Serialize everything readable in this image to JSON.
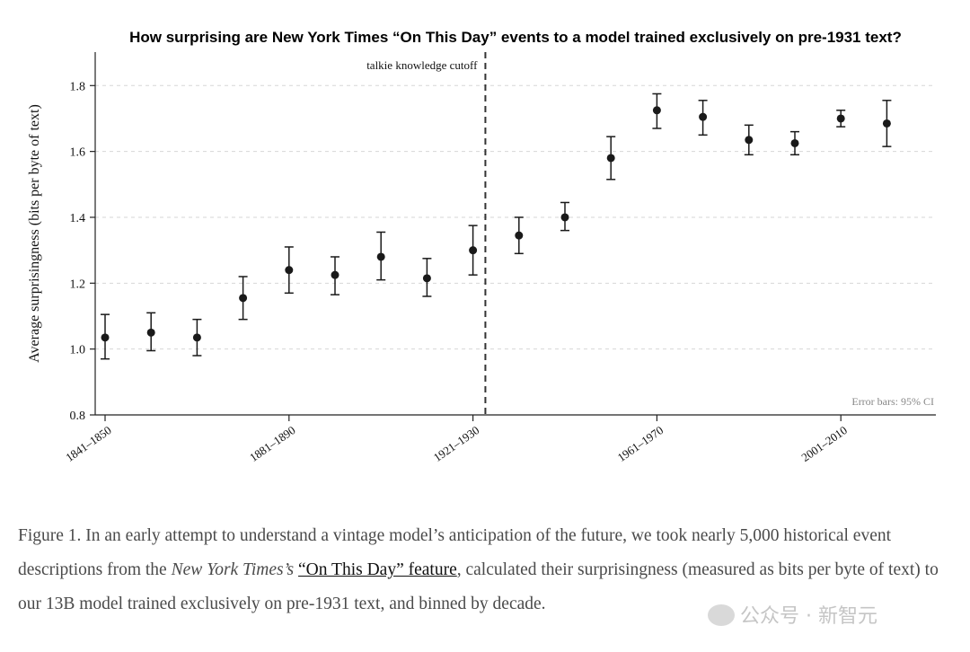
{
  "chart_data": {
    "type": "scatter",
    "title": "How surprising are New York Times “On This Day” events to a model trained exclusively on pre-1931 text?",
    "ylabel": "Average surprisingness (bits per byte of text)",
    "xlabel": "",
    "ylim": [
      0.8,
      1.9
    ],
    "y_ticks": [
      0.8,
      1.0,
      1.2,
      1.4,
      1.6,
      1.8
    ],
    "y_tick_labels": [
      "0.8",
      "1.0",
      "1.2",
      "1.4",
      "1.6",
      "1.8"
    ],
    "grid": "horizontal dashed",
    "x_tick_labels": [
      {
        "index": 0,
        "label": "1841–1850"
      },
      {
        "index": 4,
        "label": "1881–1890"
      },
      {
        "index": 8,
        "label": "1921–1930"
      },
      {
        "index": 12,
        "label": "1961–1970"
      },
      {
        "index": 16,
        "label": "2001–2010"
      }
    ],
    "series": [
      {
        "points": [
          {
            "x": "1841–1850",
            "y": 1.035,
            "low": 0.97,
            "high": 1.105
          },
          {
            "x": "1851–1860",
            "y": 1.05,
            "low": 0.995,
            "high": 1.11
          },
          {
            "x": "1861–1870",
            "y": 1.035,
            "low": 0.98,
            "high": 1.09
          },
          {
            "x": "1871–1880",
            "y": 1.155,
            "low": 1.09,
            "high": 1.22
          },
          {
            "x": "1881–1890",
            "y": 1.24,
            "low": 1.17,
            "high": 1.31
          },
          {
            "x": "1891–1900",
            "y": 1.225,
            "low": 1.165,
            "high": 1.28
          },
          {
            "x": "1901–1910",
            "y": 1.28,
            "low": 1.21,
            "high": 1.355
          },
          {
            "x": "1911–1920",
            "y": 1.215,
            "low": 1.16,
            "high": 1.275
          },
          {
            "x": "1921–1930",
            "y": 1.3,
            "low": 1.225,
            "high": 1.375
          },
          {
            "x": "1931–1940",
            "y": 1.345,
            "low": 1.29,
            "high": 1.4
          },
          {
            "x": "1941–1950",
            "y": 1.4,
            "low": 1.36,
            "high": 1.445
          },
          {
            "x": "1951–1960",
            "y": 1.58,
            "low": 1.515,
            "high": 1.645
          },
          {
            "x": "1961–1970",
            "y": 1.725,
            "low": 1.67,
            "high": 1.775
          },
          {
            "x": "1971–1980",
            "y": 1.705,
            "low": 1.65,
            "high": 1.755
          },
          {
            "x": "1981–1990",
            "y": 1.635,
            "low": 1.59,
            "high": 1.68
          },
          {
            "x": "1991–2000",
            "y": 1.625,
            "low": 1.59,
            "high": 1.66
          },
          {
            "x": "2001–2010",
            "y": 1.7,
            "low": 1.675,
            "high": 1.725
          },
          {
            "x": "2011–2020",
            "y": 1.685,
            "low": 1.615,
            "high": 1.755
          }
        ]
      }
    ],
    "cutoff": {
      "after_index": 8,
      "label": "talkie knowledge cutoff"
    },
    "note": "Error bars: 95% CI",
    "colors": {
      "points": "#1a1a1a",
      "grid": "#d6d6d6",
      "axis": "#222222"
    }
  },
  "caption": {
    "prefix": "Figure 1. In an early attempt to understand a vintage model’s anticipation of the future, we took nearly 5,000 historical event descriptions from the ",
    "italic": "New York Times’s",
    "space": " ",
    "link": "“On This Day” feature",
    "suffix": ", calculated their surprisingness (measured as bits per byte of text) to our 13B model trained exclusively on pre-1931 text, and binned by decade."
  },
  "watermark": "公众号 · 新智元"
}
